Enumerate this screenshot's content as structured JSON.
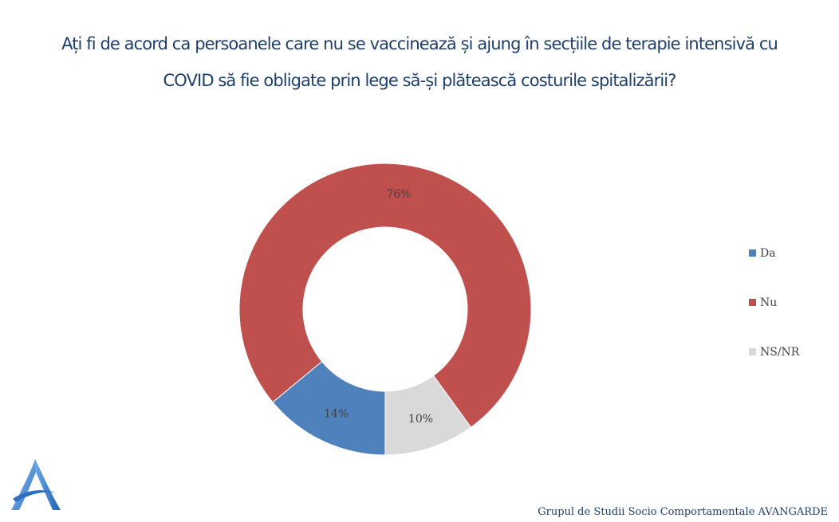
{
  "title_line1": "Ați fi de acord ca persoanele care nu se vaccinează și ajung în secțiile de terapie intensivă cu",
  "title_line2": "COVID să fie obligate prin lege să-și plătească costurile spitalizării?",
  "chart_data": {
    "type": "pie",
    "style": "donut",
    "slices": [
      {
        "label": "Da",
        "value": 14,
        "display": "14%",
        "color": "#4f81bd"
      },
      {
        "label": "Nu",
        "value": 76,
        "display": "76%",
        "color": "#c0504d"
      },
      {
        "label": "NS/NR",
        "value": 10,
        "display": "10%",
        "color": "#d9d9d9"
      }
    ],
    "legend_position": "right"
  },
  "footer": "Grupul de Studii Socio Comportamentale AVANGARDE",
  "logo": {
    "name": "avangarde-logo",
    "color": "#4f8fd6"
  }
}
